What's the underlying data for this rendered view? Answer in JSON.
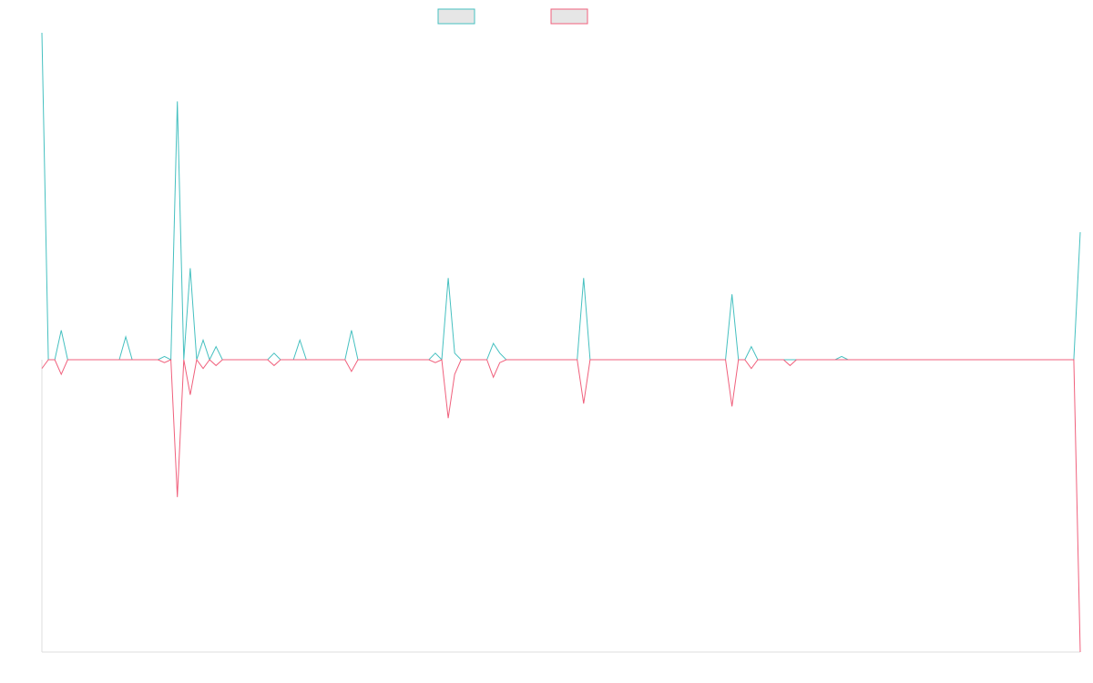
{
  "colors": {
    "series_a": "#45c0c0",
    "series_b": "#f0607c",
    "legend_fill": "#e6e6e6",
    "axis": "#dddddd"
  },
  "chart_data": {
    "type": "line",
    "title": "",
    "xlabel": "",
    "ylabel": "",
    "grid": false,
    "legend_position": "top-center",
    "x_count": 162,
    "ylim": [
      -100,
      100
    ],
    "series": [
      {
        "spikes": [
          [
            0,
            100
          ],
          [
            3,
            9
          ],
          [
            13,
            7
          ],
          [
            19,
            1
          ],
          [
            21,
            79
          ],
          [
            23,
            28
          ],
          [
            25,
            6
          ],
          [
            27,
            4
          ],
          [
            36,
            2
          ],
          [
            40,
            6
          ],
          [
            48,
            9
          ],
          [
            61,
            2
          ],
          [
            63,
            25
          ],
          [
            64,
            2
          ],
          [
            70,
            5
          ],
          [
            71,
            2
          ],
          [
            84,
            25
          ],
          [
            107,
            20
          ],
          [
            110,
            4
          ],
          [
            124,
            1
          ],
          [
            161,
            39
          ]
        ]
      },
      {
        "spikes": [
          [
            0,
            -3
          ],
          [
            3,
            -5
          ],
          [
            19,
            -1
          ],
          [
            21,
            -47
          ],
          [
            23,
            -12
          ],
          [
            25,
            -3
          ],
          [
            27,
            -2
          ],
          [
            36,
            -2
          ],
          [
            48,
            -4
          ],
          [
            61,
            -1
          ],
          [
            63,
            -20
          ],
          [
            64,
            -5
          ],
          [
            70,
            -6
          ],
          [
            71,
            -1
          ],
          [
            84,
            -15
          ],
          [
            107,
            -16
          ],
          [
            110,
            -3
          ],
          [
            116,
            -2
          ],
          [
            161,
            -100
          ]
        ]
      }
    ]
  }
}
